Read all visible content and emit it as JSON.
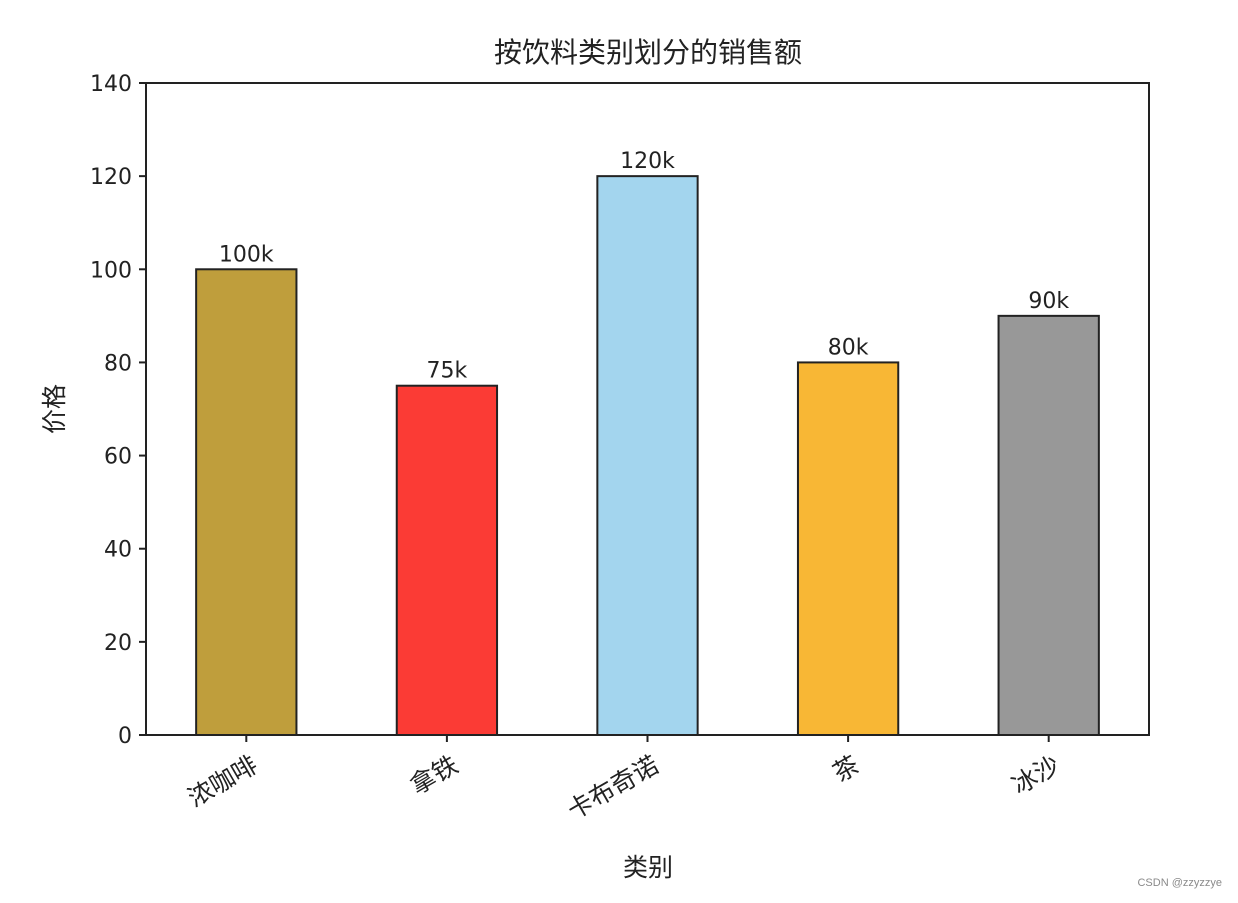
{
  "chart_data": {
    "type": "bar",
    "title": "按饮料类别划分的销售额",
    "xlabel": "类别",
    "ylabel": "价格",
    "categories": [
      "浓咖啡",
      "拿铁",
      "卡布奇诺",
      "茶",
      "冰沙"
    ],
    "values": [
      100,
      75,
      120,
      80,
      90
    ],
    "value_labels": [
      "100k",
      "75k",
      "120k",
      "80k",
      "90k"
    ],
    "bar_colors": [
      "#bf9e3c",
      "#fb3b35",
      "#a3d5ee",
      "#f8b735",
      "#989898"
    ],
    "ylim": [
      0,
      140
    ],
    "yticks": [
      0,
      20,
      40,
      60,
      80,
      100,
      120,
      140
    ],
    "grid": false,
    "legend": "none",
    "xtick_rotation_deg": 30
  },
  "watermark": "CSDN @zzyzzye"
}
